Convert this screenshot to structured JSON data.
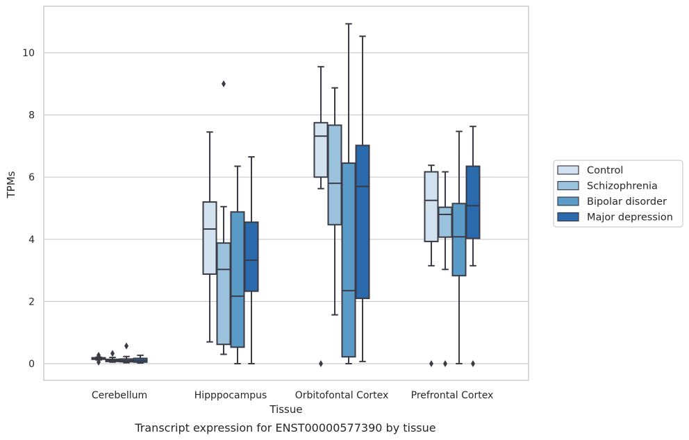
{
  "caption": "Transcript expression for ENST00000577390 by tissue",
  "chart_data": {
    "type": "box",
    "xlabel": "Tissue",
    "ylabel": "TPMs",
    "ylim": [
      -0.5,
      11.5
    ],
    "yticks": [
      0,
      2,
      4,
      6,
      8,
      10
    ],
    "grid": "horizontal",
    "legend_position": "right",
    "categories": [
      "Cerebellum",
      "Hipppocampus",
      "Orbitofontal Cortex",
      "Prefrontal Cortex"
    ],
    "series": [
      {
        "name": "Control",
        "color": "#d1e1f0",
        "boxes": [
          {
            "whisker_low": 0.12,
            "q1": 0.14,
            "median": 0.16,
            "q3": 0.19,
            "whisker_high": 0.21,
            "outliers": [
              0.05,
              0.27,
              0.22
            ]
          },
          {
            "whisker_low": 0.7,
            "q1": 2.88,
            "median": 4.33,
            "q3": 5.2,
            "whisker_high": 7.45,
            "outliers": []
          },
          {
            "whisker_low": 5.63,
            "q1": 6.0,
            "median": 7.32,
            "q3": 7.75,
            "whisker_high": 9.55,
            "outliers": [
              0.0
            ]
          },
          {
            "whisker_low": 3.15,
            "q1": 3.93,
            "median": 5.25,
            "q3": 6.17,
            "whisker_high": 6.38,
            "outliers": [
              0.0
            ]
          }
        ]
      },
      {
        "name": "Schizophrenia",
        "color": "#9ac2dd",
        "boxes": [
          {
            "whisker_low": 0.05,
            "q1": 0.07,
            "median": 0.1,
            "q3": 0.14,
            "whisker_high": 0.2,
            "outliers": [
              0.33
            ]
          },
          {
            "whisker_low": 0.3,
            "q1": 0.62,
            "median": 3.03,
            "q3": 3.88,
            "whisker_high": 5.05,
            "outliers": [
              9.0
            ]
          },
          {
            "whisker_low": 1.57,
            "q1": 4.47,
            "median": 5.8,
            "q3": 7.67,
            "whisker_high": 8.87,
            "outliers": []
          },
          {
            "whisker_low": 3.03,
            "q1": 4.07,
            "median": 4.8,
            "q3": 5.03,
            "whisker_high": 6.17,
            "outliers": [
              0.0
            ]
          }
        ]
      },
      {
        "name": "Bipolar disorder",
        "color": "#5a9bc8",
        "boxes": [
          {
            "whisker_low": 0.03,
            "q1": 0.06,
            "median": 0.1,
            "q3": 0.15,
            "whisker_high": 0.23,
            "outliers": [
              0.57
            ]
          },
          {
            "whisker_low": 0.0,
            "q1": 0.53,
            "median": 2.17,
            "q3": 4.88,
            "whisker_high": 6.35,
            "outliers": []
          },
          {
            "whisker_low": 0.0,
            "q1": 0.22,
            "median": 2.35,
            "q3": 6.45,
            "whisker_high": 10.93,
            "outliers": []
          },
          {
            "whisker_low": 0.0,
            "q1": 2.83,
            "median": 4.08,
            "q3": 5.15,
            "whisker_high": 7.47,
            "outliers": []
          }
        ]
      },
      {
        "name": "Major depression",
        "color": "#2a6aad",
        "boxes": [
          {
            "whisker_low": 0.02,
            "q1": 0.05,
            "median": 0.1,
            "q3": 0.17,
            "whisker_high": 0.27,
            "outliers": []
          },
          {
            "whisker_low": 0.0,
            "q1": 2.33,
            "median": 3.33,
            "q3": 4.55,
            "whisker_high": 6.65,
            "outliers": []
          },
          {
            "whisker_low": 0.07,
            "q1": 2.1,
            "median": 5.7,
            "q3": 7.02,
            "whisker_high": 10.53,
            "outliers": []
          },
          {
            "whisker_low": 3.15,
            "q1": 4.03,
            "median": 5.08,
            "q3": 6.35,
            "whisker_high": 7.63,
            "outliers": [
              0.0
            ]
          }
        ]
      }
    ]
  }
}
